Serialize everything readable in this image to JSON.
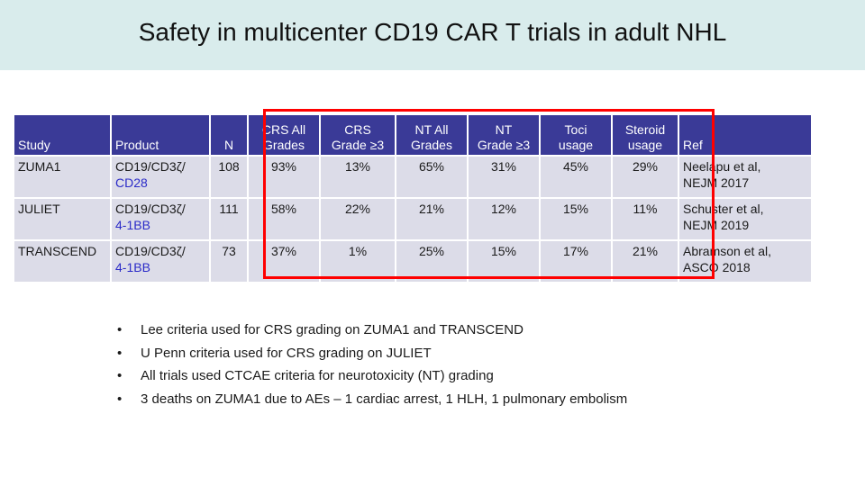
{
  "slide": {
    "title": "Safety in multicenter CD19 CAR T trials in adult NHL"
  },
  "table": {
    "headers": {
      "study": "Study",
      "product": "Product",
      "n": "N",
      "crs_all_1": "CRS All",
      "crs_all_2": "Grades",
      "crs_g3_1": "CRS",
      "crs_g3_2": "Grade ≥3",
      "nt_all_1": "NT All",
      "nt_all_2": "Grades",
      "nt_g3_1": "NT",
      "nt_g3_2": "Grade ≥3",
      "toci_1": "Toci",
      "toci_2": "usage",
      "steroid_1": "Steroid",
      "steroid_2": "usage",
      "ref": "Ref"
    },
    "rows": [
      {
        "study": "ZUMA1",
        "product_line1": "CD19/CD3ζ/",
        "product_line2": "CD28",
        "n": "108",
        "crs_all": "93%",
        "crs_g3": "13%",
        "nt_all": "65%",
        "nt_g3": "31%",
        "toci": "45%",
        "steroid": "29%",
        "ref_line1": "Neelapu et al,",
        "ref_line2": "NEJM 2017"
      },
      {
        "study": "JULIET",
        "product_line1": "CD19/CD3ζ/",
        "product_line2": "4-1BB",
        "n": "111",
        "crs_all": "58%",
        "crs_g3": "22%",
        "nt_all": "21%",
        "nt_g3": "12%",
        "toci": "15%",
        "steroid": "11%",
        "ref_line1": "Schuster et al,",
        "ref_line2": "NEJM 2019"
      },
      {
        "study": "TRANSCEND",
        "product_line1": "CD19/CD3ζ/",
        "product_line2": "4-1BB",
        "n": "73",
        "crs_all": "37%",
        "crs_g3": "1%",
        "nt_all": "25%",
        "nt_g3": "15%",
        "toci": "17%",
        "steroid": "21%",
        "ref_line1": "Abramson et al,",
        "ref_line2": "ASCO 2018"
      }
    ]
  },
  "notes": {
    "bullet_glyph": "•",
    "items": [
      "Lee criteria used for CRS grading on ZUMA1 and TRANSCEND",
      "U Penn criteria used for CRS grading on JULIET",
      "All trials used CTCAE criteria for neurotoxicity (NT) grading",
      "3 deaths on ZUMA1 due to AEs – 1 cardiac arrest, 1 HLH, 1 pulmonary embolism"
    ]
  },
  "colors": {
    "title_bg": "#d9ecec",
    "header_bg": "#3a3a97",
    "cell_bg": "#dcdce8",
    "highlight_border": "#ff0000",
    "product_suffix": "#2b2bc8"
  }
}
